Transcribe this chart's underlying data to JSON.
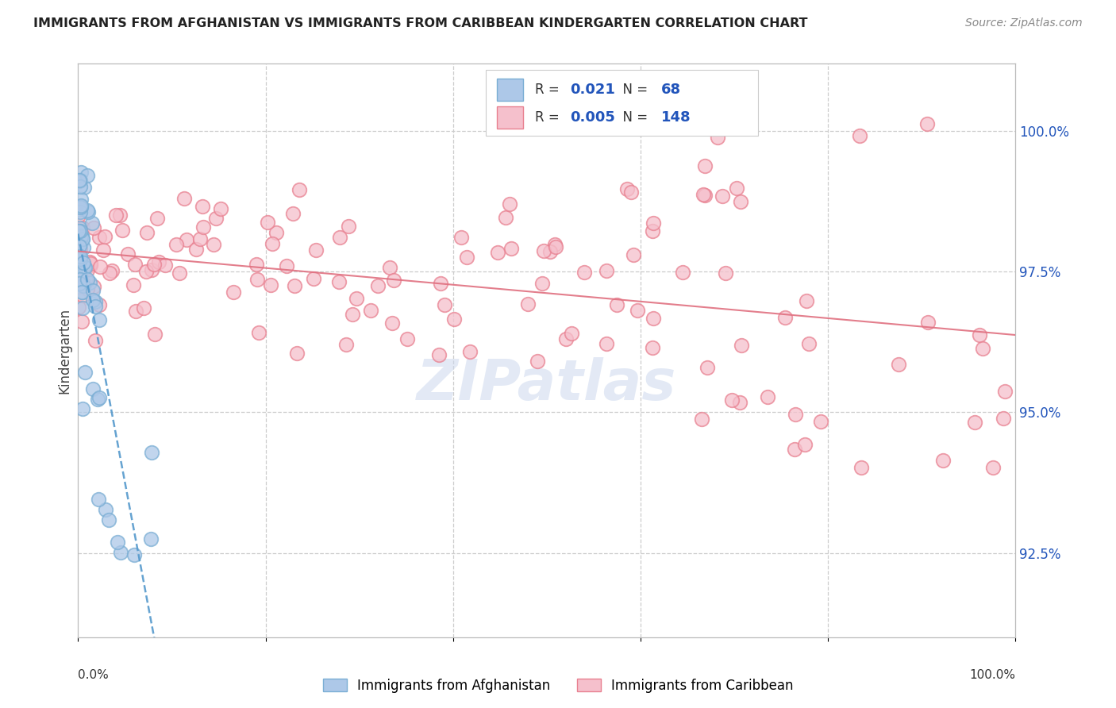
{
  "title": "IMMIGRANTS FROM AFGHANISTAN VS IMMIGRANTS FROM CARIBBEAN KINDERGARTEN CORRELATION CHART",
  "source": "Source: ZipAtlas.com",
  "ylabel": "Kindergarten",
  "right_yticks": [
    100.0,
    97.5,
    95.0,
    92.5
  ],
  "right_ytick_labels": [
    "100.0%",
    "97.5%",
    "95.0%",
    "92.5%"
  ],
  "y_min": 91.0,
  "y_max": 101.2,
  "series_afghanistan": {
    "label": "Immigrants from Afghanistan",
    "face_color": "#adc8e8",
    "edge_color": "#7aaed4",
    "R": 0.021,
    "N": 68,
    "trend_color": "#5599cc",
    "trend_style": "--"
  },
  "series_caribbean": {
    "label": "Immigrants from Caribbean",
    "face_color": "#f5c0cc",
    "edge_color": "#e88090",
    "R": 0.005,
    "N": 148,
    "trend_color": "#e07080",
    "trend_style": "-"
  },
  "watermark": "ZIPatlas",
  "legend_text_color": "#2255bb",
  "legend_label_color": "#333333",
  "background_color": "#ffffff",
  "grid_color": "#cccccc",
  "title_color": "#222222",
  "source_color": "#888888"
}
